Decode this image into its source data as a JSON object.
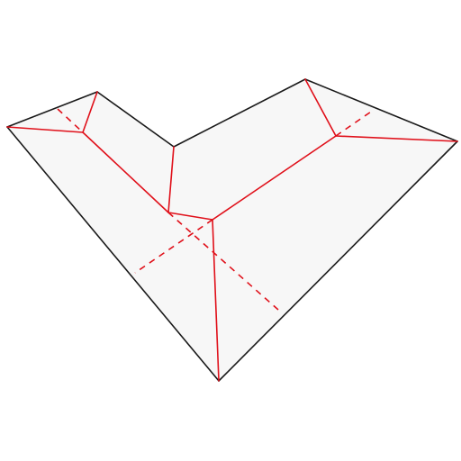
{
  "diagram": {
    "kind": "roof-plan-3d",
    "colors": {
      "background": "#ffffff",
      "roof_fill": "#f7f7f7",
      "outline": "#1a1a1a",
      "ridge": "#e0101a",
      "hidden": "#e0101a"
    }
  }
}
